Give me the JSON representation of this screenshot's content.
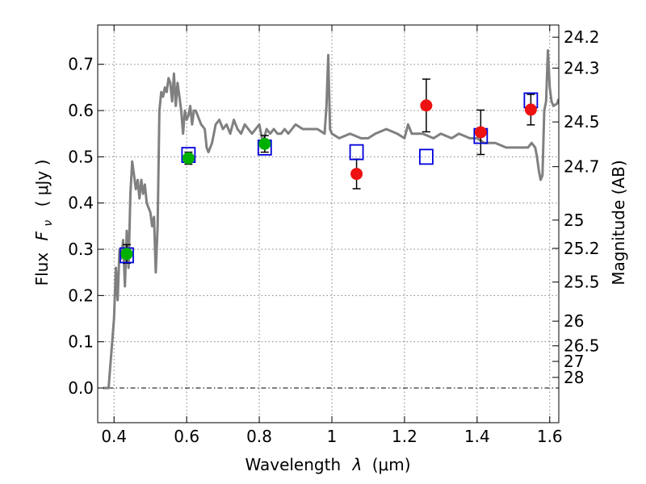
{
  "chart_data": {
    "type": "scatter",
    "xlabel": "Wavelength  λ (μm)",
    "ylabel": "Flux  F_ν  ( μJy )",
    "ylabel_parts": {
      "pre": "Flux",
      "sym": "F",
      "sub": "ν",
      "unit": "( μJy )"
    },
    "xlabel_parts": {
      "pre": "Wavelength",
      "sym": "λ",
      "unit": "(μm)"
    },
    "y2label": "Magnitude (AB)",
    "xlim": [
      0.355,
      1.625
    ],
    "ylim": [
      -0.075,
      0.785
    ],
    "x_ticks": [
      0.4,
      0.6,
      0.8,
      1.0,
      1.2,
      1.4,
      1.6
    ],
    "x_tick_labels": [
      "0.4",
      "0.6",
      "0.8",
      "1",
      "1.2",
      "1.4",
      "1.6"
    ],
    "y_ticks": [
      0.0,
      0.1,
      0.2,
      0.3,
      0.4,
      0.5,
      0.6,
      0.7
    ],
    "y_tick_labels": [
      "0.0",
      "0.1",
      "0.2",
      "0.3",
      "0.4",
      "0.5",
      "0.6",
      "0.7"
    ],
    "mag_ticks": [
      24.2,
      24.3,
      24.5,
      24.7,
      25,
      25.2,
      25.5,
      26,
      26.5,
      27,
      28
    ],
    "mag_tick_labels": [
      "24.2",
      "24.3",
      "24.5",
      "24.7",
      "25",
      "25.2",
      "25.5",
      "26",
      "26.5",
      "27",
      "28"
    ],
    "grid": true,
    "colors": {
      "model": "#808080",
      "green": "#00b000",
      "red": "#ee1111",
      "box": "#0000dd",
      "errorbar": "#000000"
    },
    "model_spectrum": {
      "x": [
        0.37,
        0.385,
        0.39,
        0.4,
        0.405,
        0.41,
        0.415,
        0.42,
        0.425,
        0.43,
        0.435,
        0.44,
        0.445,
        0.45,
        0.455,
        0.46,
        0.465,
        0.47,
        0.475,
        0.48,
        0.485,
        0.49,
        0.495,
        0.5,
        0.505,
        0.51,
        0.515,
        0.52,
        0.525,
        0.53,
        0.535,
        0.54,
        0.545,
        0.55,
        0.555,
        0.56,
        0.565,
        0.57,
        0.575,
        0.58,
        0.585,
        0.59,
        0.595,
        0.6,
        0.605,
        0.61,
        0.615,
        0.62,
        0.625,
        0.63,
        0.64,
        0.65,
        0.655,
        0.66,
        0.67,
        0.68,
        0.69,
        0.7,
        0.71,
        0.72,
        0.73,
        0.74,
        0.75,
        0.76,
        0.77,
        0.78,
        0.79,
        0.8,
        0.81,
        0.82,
        0.83,
        0.84,
        0.85,
        0.86,
        0.87,
        0.88,
        0.89,
        0.9,
        0.92,
        0.94,
        0.96,
        0.98,
        0.985,
        0.99,
        0.995,
        1.0,
        1.02,
        1.05,
        1.08,
        1.1,
        1.12,
        1.15,
        1.18,
        1.2,
        1.21,
        1.22,
        1.25,
        1.28,
        1.3,
        1.33,
        1.35,
        1.38,
        1.4,
        1.42,
        1.45,
        1.48,
        1.5,
        1.52,
        1.54,
        1.55,
        1.56,
        1.565,
        1.57,
        1.575,
        1.58,
        1.585,
        1.59,
        1.595,
        1.6,
        1.605,
        1.61,
        1.62,
        1.625
      ],
      "y": [
        0.0,
        0.0,
        0.05,
        0.15,
        0.26,
        0.19,
        0.3,
        0.28,
        0.32,
        0.22,
        0.34,
        0.26,
        0.42,
        0.49,
        0.46,
        0.43,
        0.45,
        0.41,
        0.45,
        0.42,
        0.44,
        0.4,
        0.39,
        0.38,
        0.35,
        0.37,
        0.25,
        0.35,
        0.6,
        0.64,
        0.63,
        0.65,
        0.64,
        0.67,
        0.66,
        0.62,
        0.68,
        0.61,
        0.66,
        0.63,
        0.6,
        0.55,
        0.6,
        0.58,
        0.59,
        0.61,
        0.57,
        0.6,
        0.6,
        0.59,
        0.57,
        0.56,
        0.52,
        0.51,
        0.53,
        0.57,
        0.58,
        0.56,
        0.57,
        0.55,
        0.58,
        0.56,
        0.55,
        0.57,
        0.56,
        0.55,
        0.56,
        0.57,
        0.53,
        0.56,
        0.55,
        0.56,
        0.55,
        0.55,
        0.56,
        0.55,
        0.56,
        0.57,
        0.56,
        0.56,
        0.56,
        0.55,
        0.61,
        0.72,
        0.56,
        0.55,
        0.54,
        0.55,
        0.54,
        0.54,
        0.55,
        0.56,
        0.55,
        0.54,
        0.57,
        0.55,
        0.55,
        0.54,
        0.55,
        0.54,
        0.55,
        0.54,
        0.54,
        0.53,
        0.53,
        0.52,
        0.52,
        0.52,
        0.52,
        0.53,
        0.52,
        0.5,
        0.47,
        0.45,
        0.46,
        0.6,
        0.62,
        0.73,
        0.65,
        0.62,
        0.61,
        0.615,
        0.625
      ],
      "bumps_note": ""
    },
    "green_points": [
      {
        "x": 0.435,
        "y": 0.29,
        "err": 0.02
      },
      {
        "x": 0.605,
        "y": 0.497,
        "err": 0.013
      },
      {
        "x": 0.815,
        "y": 0.528,
        "err": 0.018
      }
    ],
    "red_points": [
      {
        "x": 1.068,
        "y": 0.463,
        "err": 0.032
      },
      {
        "x": 1.26,
        "y": 0.611,
        "err": 0.057
      },
      {
        "x": 1.41,
        "y": 0.553,
        "err": 0.048
      },
      {
        "x": 1.548,
        "y": 0.602,
        "err": 0.033
      }
    ],
    "model_boxes": [
      {
        "x": 0.435,
        "y": 0.287
      },
      {
        "x": 0.605,
        "y": 0.504
      },
      {
        "x": 0.815,
        "y": 0.52
      },
      {
        "x": 1.068,
        "y": 0.51
      },
      {
        "x": 1.26,
        "y": 0.5
      },
      {
        "x": 1.41,
        "y": 0.545
      },
      {
        "x": 1.548,
        "y": 0.622
      }
    ]
  }
}
